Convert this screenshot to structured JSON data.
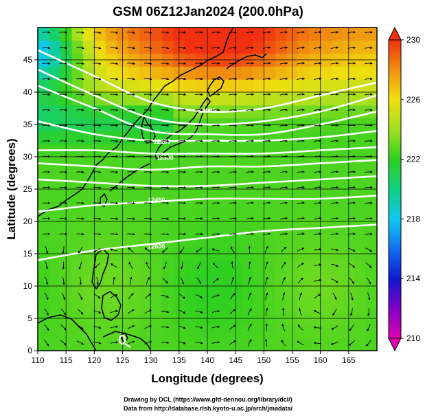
{
  "title": "GSM 06Z12Jan2024 (200.0hPa)",
  "credits": {
    "drawing": "Drawing by DCL (https://www.gfd-dennou.org/library/dcl/)",
    "data": "Data from http://database.rish.kyoto-u.ac.jp/arch/jmadata/"
  },
  "map": {
    "x_axis": {
      "label": "Longitude (degrees)",
      "range": [
        110,
        170
      ],
      "ticks": [
        "110",
        "115",
        "120",
        "125",
        "130",
        "135",
        "140",
        "145",
        "150",
        "155",
        "160",
        "165"
      ]
    },
    "y_axis": {
      "label": "Latitude (degrees)",
      "range": [
        0,
        50
      ],
      "ticks": [
        "0",
        "5",
        "10",
        "15",
        "20",
        "25",
        "30",
        "35",
        "40",
        "45"
      ]
    },
    "grid": true,
    "colorbar": {
      "range": [
        210,
        230
      ],
      "tick_labels": [
        "230",
        "226",
        "222",
        "218",
        "214",
        "210"
      ],
      "tick_values": [
        230,
        226,
        222,
        218,
        214,
        210
      ],
      "colormap": [
        {
          "value": 210,
          "color": "#e000b0"
        },
        {
          "value": 212,
          "color": "#8000c8"
        },
        {
          "value": 214,
          "color": "#1018d0"
        },
        {
          "value": 216,
          "color": "#1070f0"
        },
        {
          "value": 218,
          "color": "#10c8f0"
        },
        {
          "value": 220,
          "color": "#10d080"
        },
        {
          "value": 222,
          "color": "#30d020"
        },
        {
          "value": 224,
          "color": "#a0e020"
        },
        {
          "value": 226,
          "color": "#f0e010"
        },
        {
          "value": 228,
          "color": "#f09010"
        },
        {
          "value": 230,
          "color": "#f03010"
        }
      ]
    },
    "contour_labels": [
      {
        "text": "12000",
        "lon": 140.0,
        "lat": 36.8
      },
      {
        "text": "12150",
        "lon": 132.0,
        "lat": 32.0
      },
      {
        "text": "12300",
        "lon": 132.5,
        "lat": 29.5
      },
      {
        "text": "12450",
        "lon": 131.0,
        "lat": 23.0
      },
      {
        "text": "12600",
        "lon": 131.0,
        "lat": 15.8
      }
    ],
    "contours": [
      {
        "lats_at_lons": [
          [
            110,
            46.5
          ],
          [
            120,
            42.5
          ],
          [
            130,
            38.5
          ],
          [
            140,
            37.0
          ],
          [
            150,
            37.5
          ],
          [
            160,
            39.5
          ],
          [
            170,
            41.5
          ]
        ]
      },
      {
        "lats_at_lons": [
          [
            110,
            43.5
          ],
          [
            120,
            39.5
          ],
          [
            130,
            36.0
          ],
          [
            140,
            35.0
          ],
          [
            150,
            35.5
          ],
          [
            160,
            37.0
          ],
          [
            170,
            39.5
          ]
        ]
      },
      {
        "lats_at_lons": [
          [
            110,
            41.0
          ],
          [
            120,
            37.5
          ],
          [
            130,
            34.0
          ],
          [
            140,
            33.5
          ],
          [
            150,
            33.5
          ],
          [
            160,
            35.0
          ],
          [
            170,
            37.0
          ]
        ]
      },
      {
        "lats_at_lons": [
          [
            110,
            35.5
          ],
          [
            120,
            33.5
          ],
          [
            130,
            32.5
          ],
          [
            140,
            32.5
          ],
          [
            150,
            32.5
          ],
          [
            160,
            33.0
          ],
          [
            170,
            34.0
          ]
        ]
      },
      {
        "lats_at_lons": [
          [
            110,
            31.0
          ],
          [
            120,
            31.0
          ],
          [
            130,
            30.5
          ],
          [
            140,
            30.5
          ],
          [
            150,
            30.5
          ],
          [
            160,
            31.0
          ],
          [
            170,
            31.5
          ]
        ]
      },
      {
        "lats_at_lons": [
          [
            110,
            29.0
          ],
          [
            120,
            28.5
          ],
          [
            130,
            28.0
          ],
          [
            140,
            28.5
          ],
          [
            150,
            28.5
          ],
          [
            160,
            29.0
          ],
          [
            170,
            29.5
          ]
        ]
      },
      {
        "lats_at_lons": [
          [
            110,
            26.5
          ],
          [
            120,
            26.0
          ],
          [
            130,
            25.5
          ],
          [
            140,
            25.5
          ],
          [
            150,
            26.0
          ],
          [
            160,
            26.5
          ],
          [
            170,
            27.0
          ]
        ]
      },
      {
        "lats_at_lons": [
          [
            110,
            21.5
          ],
          [
            120,
            22.5
          ],
          [
            130,
            23.0
          ],
          [
            140,
            23.5
          ],
          [
            150,
            23.5
          ],
          [
            160,
            23.5
          ],
          [
            170,
            24.0
          ]
        ]
      },
      {
        "lats_at_lons": [
          [
            110,
            14.0
          ],
          [
            120,
            15.5
          ],
          [
            130,
            16.5
          ],
          [
            140,
            17.5
          ],
          [
            150,
            18.5
          ],
          [
            160,
            19.0
          ],
          [
            170,
            19.5
          ]
        ]
      }
    ]
  }
}
